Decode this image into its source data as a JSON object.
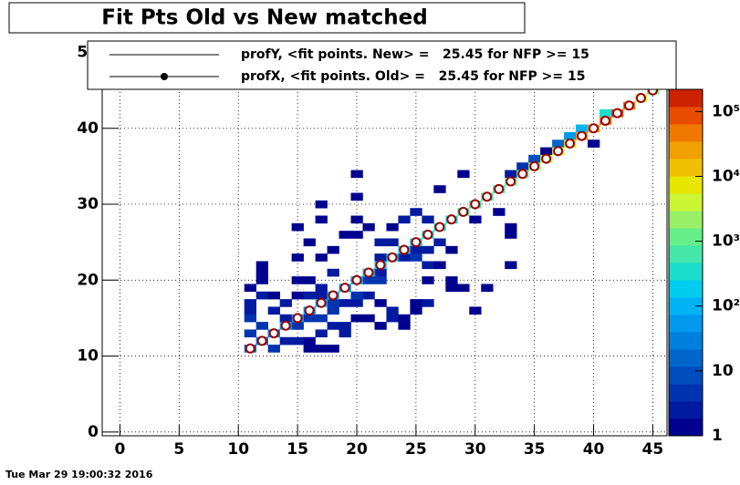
{
  "chart_data": {
    "type": "heatmap",
    "title": "Fit Pts Old vs New matched",
    "date": "Tue Mar 29 19:00:32 2016",
    "xlim": [
      -1.5,
      46.2
    ],
    "ylim": [
      -0.5,
      51.5
    ],
    "xticks": [
      0,
      5,
      10,
      15,
      20,
      25,
      30,
      35,
      40,
      45
    ],
    "yticks": [
      0,
      10,
      20,
      30,
      40,
      50
    ],
    "grid": true,
    "zlog": true,
    "zlim": [
      1,
      220000
    ],
    "zticks": [
      1,
      10,
      {
        "value": 100,
        "label": "10²"
      },
      {
        "value": 1000,
        "label": "10³"
      },
      {
        "value": 10000,
        "label": "10⁴"
      },
      {
        "value": 100000,
        "label": "10⁵"
      }
    ],
    "palette": [
      "#00008f",
      "#001aa0",
      "#0033b0",
      "#004cbf",
      "#0066cc",
      "#0080dd",
      "#0099ee",
      "#00b3f5",
      "#00ccee",
      "#1addcc",
      "#44e6aa",
      "#66ee88",
      "#99f066",
      "#ccf533",
      "#e6e600",
      "#f0c000",
      "#f0a000",
      "#f07800",
      "#e84c00",
      "#cc2200"
    ],
    "cells": {
      "x": [
        20,
        29,
        33,
        34,
        36,
        40,
        20,
        27,
        17,
        17,
        15,
        20,
        21,
        19,
        20,
        23,
        24,
        25,
        26,
        30,
        32,
        33,
        18,
        16,
        22,
        23,
        25,
        26,
        27,
        28,
        33,
        12,
        12,
        15,
        17,
        22,
        24,
        25,
        26,
        27,
        33,
        12,
        15,
        16,
        18,
        21,
        22,
        26,
        28,
        28,
        29,
        31,
        11,
        12,
        13,
        15,
        17,
        20,
        21,
        22,
        23,
        25,
        25,
        30,
        11,
        11,
        11,
        12,
        13,
        11,
        12,
        13,
        14,
        15,
        16,
        16,
        17,
        18,
        17,
        18,
        19,
        20,
        19,
        21,
        22,
        24,
        23,
        24,
        26,
        13,
        14,
        15,
        16,
        17,
        18,
        19,
        20,
        14,
        16,
        17,
        19,
        20,
        21,
        22,
        18,
        34,
        35,
        37,
        38,
        39,
        41,
        11,
        12,
        13,
        14,
        15,
        16,
        17,
        18,
        19,
        20,
        21,
        22,
        23,
        24,
        25,
        26,
        27,
        28,
        29,
        30,
        31,
        32,
        33,
        34,
        35,
        36,
        37,
        38,
        39,
        40,
        41,
        42,
        43,
        44,
        45
      ],
      "y": [
        34,
        34,
        34,
        34,
        37,
        38,
        31,
        32,
        30,
        28,
        27,
        28,
        27,
        26,
        26,
        27,
        28,
        29,
        28,
        28,
        29,
        27,
        24,
        25,
        25,
        25,
        24,
        24,
        25,
        24,
        26,
        22,
        21,
        23,
        23,
        23,
        23,
        23,
        22,
        22,
        22,
        20,
        20,
        20,
        21,
        21,
        21,
        20,
        20,
        19,
        19,
        19,
        19,
        18,
        18,
        18,
        19,
        17,
        18,
        17,
        16,
        16,
        17,
        16,
        17,
        16,
        15,
        14,
        13,
        13,
        12,
        11,
        12,
        12,
        12,
        11,
        11,
        11,
        13,
        14,
        14,
        15,
        13,
        15,
        14,
        14,
        15,
        15,
        17,
        16,
        15,
        14,
        15,
        15,
        16,
        17,
        18,
        17,
        18,
        18,
        19,
        20,
        20,
        20,
        17,
        35,
        36,
        38,
        39,
        40,
        42,
        11,
        12,
        13,
        14,
        15,
        16,
        17,
        18,
        19,
        20,
        21,
        22,
        23,
        24,
        25,
        26,
        27,
        28,
        29,
        30,
        31,
        32,
        33,
        34,
        35,
        36,
        37,
        38,
        39,
        40,
        41,
        42,
        43,
        44,
        45
      ],
      "values": [
        1,
        1,
        2,
        2,
        1,
        1,
        1,
        1,
        1,
        1,
        1,
        1,
        1,
        1,
        1,
        1,
        2,
        2,
        3,
        1,
        1,
        1,
        1,
        1,
        2,
        3,
        2,
        2,
        3,
        1,
        1,
        1,
        1,
        1,
        1,
        2,
        3,
        4,
        2,
        1,
        1,
        1,
        1,
        1,
        2,
        2,
        3,
        1,
        1,
        1,
        1,
        1,
        1,
        2,
        1,
        1,
        2,
        2,
        2,
        1,
        2,
        1,
        1,
        1,
        2,
        3,
        5,
        4,
        3,
        4,
        6,
        5,
        3,
        2,
        1,
        1,
        1,
        1,
        2,
        3,
        2,
        1,
        2,
        1,
        1,
        1,
        2,
        1,
        2,
        2,
        3,
        4,
        5,
        4,
        4,
        3,
        4,
        2,
        2,
        3,
        3,
        4,
        4,
        5,
        4,
        5,
        10,
        20,
        50,
        100,
        300,
        20,
        30,
        40,
        50,
        60,
        70,
        80,
        90,
        100,
        120,
        140,
        160,
        180,
        200,
        250,
        300,
        350,
        400,
        500,
        600,
        700,
        800,
        1000,
        1500,
        2000,
        3000,
        5000,
        10000,
        20000,
        30000,
        50000,
        80000,
        60000,
        5000,
        1000
      ]
    },
    "profile": {
      "x": [
        11,
        12,
        13,
        14,
        15,
        16,
        17,
        18,
        19,
        20,
        21,
        22,
        23,
        24,
        25,
        26,
        27,
        28,
        29,
        30,
        31,
        32,
        33,
        34,
        35,
        36,
        37,
        38,
        39,
        40,
        41,
        42,
        43,
        44,
        45
      ],
      "y": [
        11,
        12,
        13,
        14,
        15,
        16,
        17,
        18,
        19,
        20,
        21,
        22,
        23,
        24,
        25,
        26,
        27,
        28,
        29,
        30,
        31,
        32,
        33,
        34,
        35,
        36,
        37,
        38,
        39,
        40,
        41,
        42,
        43,
        44,
        45
      ],
      "color": "#990000"
    },
    "legend": [
      {
        "label": "profY, <fit points. New> =   25.45 for NFP >= 15",
        "marker": false
      },
      {
        "label": "profX, <fit points. Old> =   25.45 for NFP >= 15",
        "marker": true
      }
    ]
  }
}
